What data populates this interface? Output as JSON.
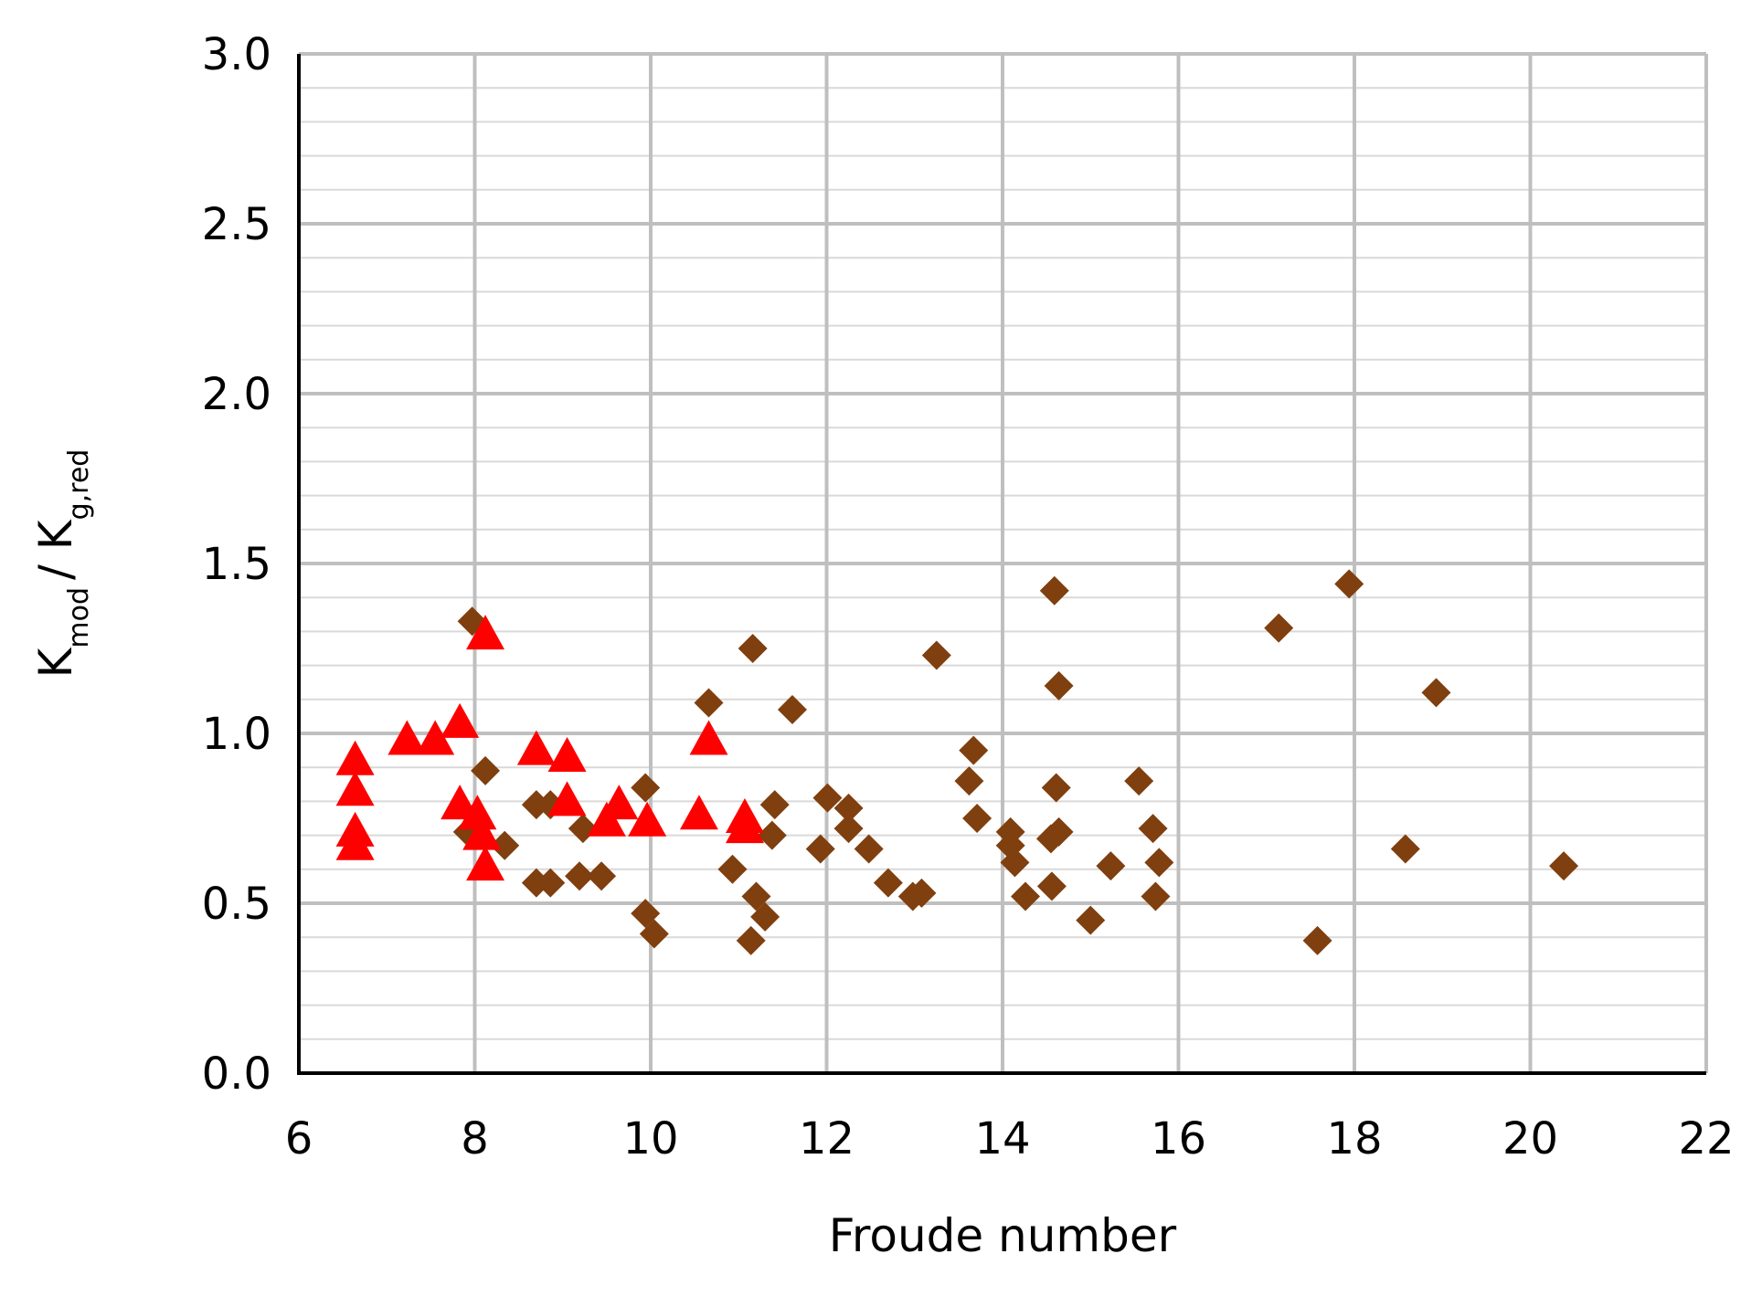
{
  "chart_data": {
    "type": "scatter",
    "xlabel": "Froude number",
    "ylabel_parts": [
      "K",
      "mod",
      "/ K",
      "g,red"
    ],
    "xlim": [
      6,
      22
    ],
    "xticks": [
      6,
      8,
      10,
      12,
      14,
      16,
      18,
      20,
      22
    ],
    "ylim": [
      0,
      3
    ],
    "yticks": [
      {
        "value": 0,
        "label": "0.0"
      },
      {
        "value": 0.5,
        "label": "0.5"
      },
      {
        "value": 1,
        "label": "1.0"
      },
      {
        "value": 1.5,
        "label": "1.5"
      },
      {
        "value": 2,
        "label": "2.0"
      },
      {
        "value": 2.5,
        "label": "2.5"
      },
      {
        "value": 3,
        "label": "3.0"
      }
    ],
    "grid": true,
    "series": [
      {
        "color": "#7f3f0f",
        "marker": "diamond",
        "x": [
          7.97,
          8.12,
          7.92,
          8.34,
          8.7,
          8.7,
          8.86,
          8.86,
          9.23,
          9.19,
          9.44,
          9.94,
          9.94,
          10.04,
          10.66,
          10.93,
          11.16,
          11.2,
          11.3,
          11.14,
          11.38,
          11.41,
          11.61,
          11.93,
          12.01,
          12.25,
          12.25,
          12.48,
          12.7,
          12.98,
          13.08,
          13.25,
          13.62,
          13.67,
          13.71,
          14.09,
          14.09,
          14.14,
          14.26,
          14.59,
          14.64,
          14.61,
          14.64,
          14.55,
          14.56,
          15.0,
          15.23,
          15.55,
          15.71,
          15.78,
          15.74,
          17.14,
          17.58,
          17.94,
          18.58,
          18.93,
          20.38
        ],
        "values": [
          1.33,
          0.89,
          0.71,
          0.67,
          0.79,
          0.56,
          0.56,
          0.79,
          0.72,
          0.58,
          0.58,
          0.84,
          0.47,
          0.41,
          1.09,
          0.6,
          1.25,
          0.52,
          0.46,
          0.39,
          0.7,
          0.79,
          1.07,
          0.66,
          0.81,
          0.78,
          0.72,
          0.66,
          0.56,
          0.52,
          0.53,
          1.23,
          0.86,
          0.95,
          0.75,
          0.71,
          0.67,
          0.62,
          0.52,
          1.42,
          1.14,
          0.84,
          0.71,
          0.69,
          0.55,
          0.45,
          0.61,
          0.86,
          0.72,
          0.62,
          0.52,
          1.31,
          0.39,
          1.44,
          0.66,
          1.12,
          0.61
        ]
      },
      {
        "color": "#ff0000",
        "marker": "triangle",
        "x": [
          6.64,
          6.64,
          6.64,
          6.64,
          7.23,
          7.55,
          7.83,
          7.83,
          8.03,
          8.12,
          8.08,
          8.12,
          8.7,
          9.05,
          9.05,
          9.5,
          9.64,
          9.96,
          10.55,
          10.66,
          11.07,
          11.07
        ],
        "values": [
          0.92,
          0.83,
          0.71,
          0.67,
          0.98,
          0.98,
          1.03,
          0.79,
          0.76,
          1.29,
          0.7,
          0.61,
          0.95,
          0.93,
          0.8,
          0.74,
          0.79,
          0.74,
          0.76,
          0.98,
          0.75,
          0.72
        ]
      }
    ]
  }
}
